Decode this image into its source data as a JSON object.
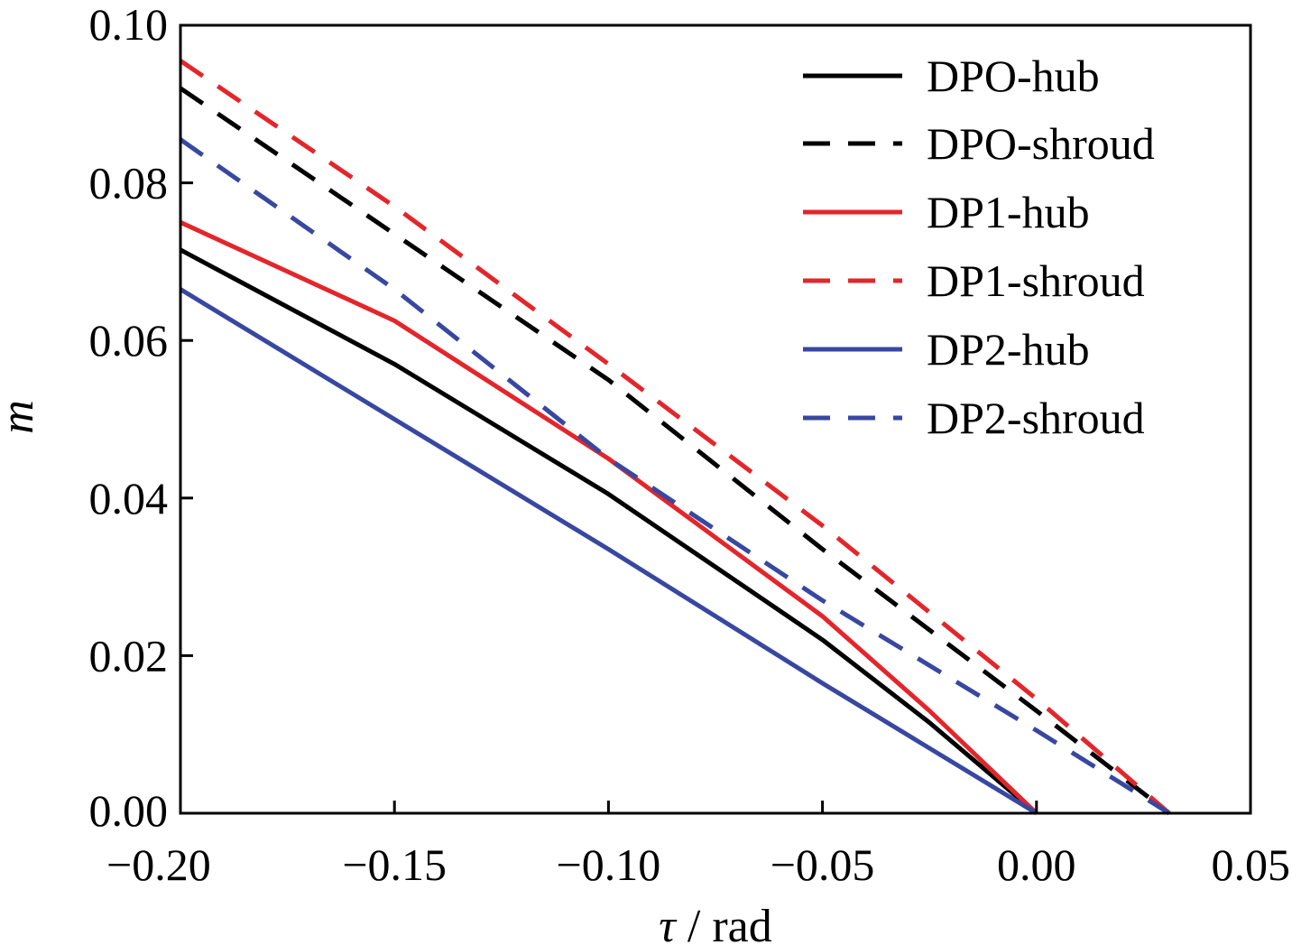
{
  "chart_data": {
    "type": "line",
    "title": "",
    "xlabel_symbol": "τ",
    "xlabel_unit": " / rad",
    "ylabel": "m",
    "xlim": [
      -0.2,
      0.05
    ],
    "ylim": [
      0.0,
      0.1
    ],
    "xticks": [
      "−0.20",
      "−0.15",
      "−0.10",
      "−0.05",
      "0.00",
      "0.05"
    ],
    "xtick_values": [
      -0.2,
      -0.15,
      -0.1,
      -0.05,
      0.0,
      0.05
    ],
    "yticks": [
      "0.00",
      "0.02",
      "0.04",
      "0.06",
      "0.08",
      "0.10"
    ],
    "ytick_values": [
      0.0,
      0.02,
      0.04,
      0.06,
      0.08,
      0.1
    ],
    "grid": false,
    "legend_position": "top-right",
    "series": [
      {
        "name": "DPO-hub",
        "color": "#000000",
        "style": "solid",
        "x": [
          -0.2,
          -0.15,
          -0.1,
          -0.05,
          -0.025,
          0.0
        ],
        "y": [
          0.0715,
          0.057,
          0.0405,
          0.022,
          0.0115,
          0.0
        ]
      },
      {
        "name": "DPO-shroud",
        "color": "#000000",
        "style": "dashed",
        "x": [
          -0.2,
          -0.15,
          -0.1,
          -0.05,
          0.0,
          0.031
        ],
        "y": [
          0.092,
          0.0735,
          0.055,
          0.0335,
          0.013,
          0.0
        ]
      },
      {
        "name": "DP1-hub",
        "color": "#e3262b",
        "style": "solid",
        "x": [
          -0.2,
          -0.15,
          -0.1,
          -0.05,
          -0.025,
          0.0
        ],
        "y": [
          0.075,
          0.0625,
          0.045,
          0.025,
          0.013,
          0.0
        ]
      },
      {
        "name": "DP1-shroud",
        "color": "#e3262b",
        "style": "dashed",
        "x": [
          -0.2,
          -0.15,
          -0.1,
          -0.05,
          0.0,
          0.031
        ],
        "y": [
          0.0955,
          0.077,
          0.057,
          0.0365,
          0.0145,
          0.0
        ]
      },
      {
        "name": "DP2-hub",
        "color": "#3848a0",
        "style": "solid",
        "x": [
          -0.2,
          -0.15,
          -0.1,
          -0.05,
          0.0
        ],
        "y": [
          0.0665,
          0.05,
          0.0335,
          0.0165,
          0.0
        ]
      },
      {
        "name": "DP2-shroud",
        "color": "#3848a0",
        "style": "dashed",
        "x": [
          -0.2,
          -0.15,
          -0.1,
          -0.05,
          0.0,
          0.031
        ],
        "y": [
          0.0855,
          0.0665,
          0.045,
          0.027,
          0.0105,
          0.0
        ]
      }
    ]
  }
}
